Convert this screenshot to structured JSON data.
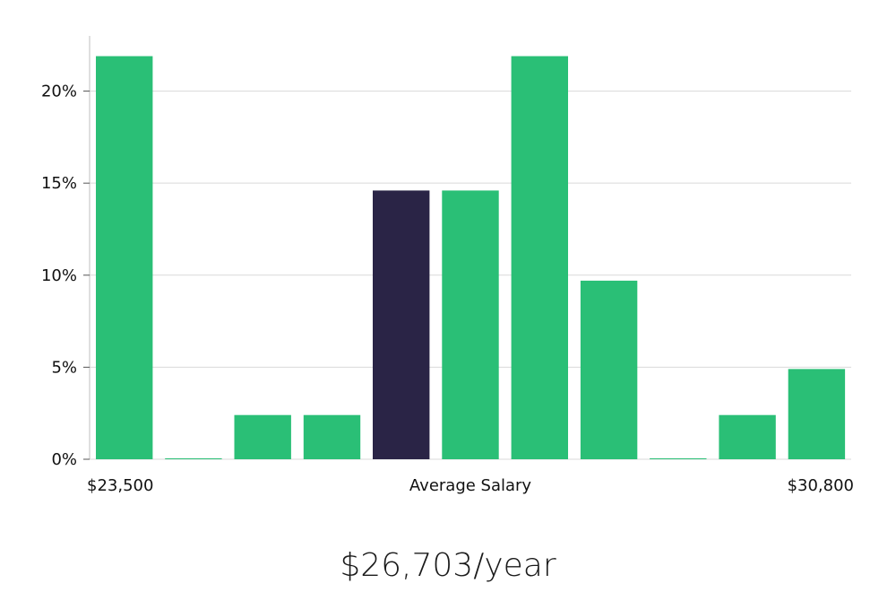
{
  "chart_data": {
    "type": "bar",
    "title": "",
    "xlabel": "Average Salary",
    "ylabel": "",
    "x_min_label": "$23,500",
    "x_max_label": "$30,800",
    "ylim": [
      0,
      23
    ],
    "yticks": [
      0,
      5,
      10,
      15,
      20
    ],
    "ytick_labels": [
      "0%",
      "5%",
      "10%",
      "15%",
      "20%"
    ],
    "values": [
      21.9,
      0.05,
      2.4,
      2.4,
      14.6,
      14.6,
      21.9,
      9.7,
      0.05,
      2.4,
      4.9
    ],
    "highlight_index": 4,
    "colors": {
      "bar": "#2abf76",
      "highlight": "#2a2446",
      "grid": "#d9d9d9",
      "axis": "#bfbfbf"
    }
  },
  "summary": {
    "salary_text": "$26,703/year"
  }
}
